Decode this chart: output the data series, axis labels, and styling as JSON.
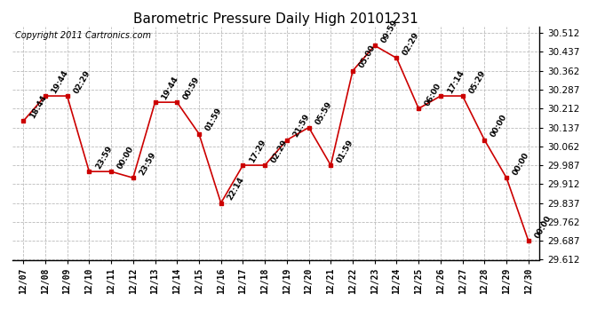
{
  "title": "Barometric Pressure Daily High 20101231",
  "copyright": "Copyright 2011 Cartronics.com",
  "background_color": "#ffffff",
  "line_color": "#cc0000",
  "marker_color": "#cc0000",
  "grid_color": "#bbbbbb",
  "dates": [
    "12/07",
    "12/08",
    "12/09",
    "12/10",
    "12/11",
    "12/12",
    "12/13",
    "12/14",
    "12/15",
    "12/16",
    "12/17",
    "12/18",
    "12/19",
    "12/20",
    "12/21",
    "12/22",
    "12/23",
    "12/24",
    "12/25",
    "12/26",
    "12/27",
    "12/28",
    "12/29",
    "12/30"
  ],
  "values": [
    30.162,
    30.262,
    30.262,
    29.962,
    29.962,
    29.937,
    30.237,
    30.237,
    30.112,
    29.837,
    29.987,
    29.987,
    30.087,
    30.137,
    29.987,
    30.362,
    30.462,
    30.412,
    30.212,
    30.262,
    30.262,
    30.087,
    29.937,
    29.687
  ],
  "annotations": [
    "18:44",
    "19:44",
    "02:29",
    "23:59",
    "00:00",
    "23:59",
    "19:44",
    "00:59",
    "01:59",
    "22:14",
    "17:29",
    "02:29",
    "21:59",
    "05:59",
    "01:59",
    "05:00",
    "09:59",
    "02:29",
    "06:00",
    "17:14",
    "05:29",
    "00:00",
    "00:00",
    "00:00"
  ],
  "ylim_min": 29.612,
  "ylim_max": 30.537,
  "yticks": [
    29.612,
    29.687,
    29.762,
    29.837,
    29.912,
    29.987,
    30.062,
    30.137,
    30.212,
    30.287,
    30.362,
    30.437,
    30.512
  ],
  "title_fontsize": 11,
  "annotation_fontsize": 6.5,
  "copyright_fontsize": 7,
  "figwidth": 6.9,
  "figheight": 3.75,
  "dpi": 100
}
